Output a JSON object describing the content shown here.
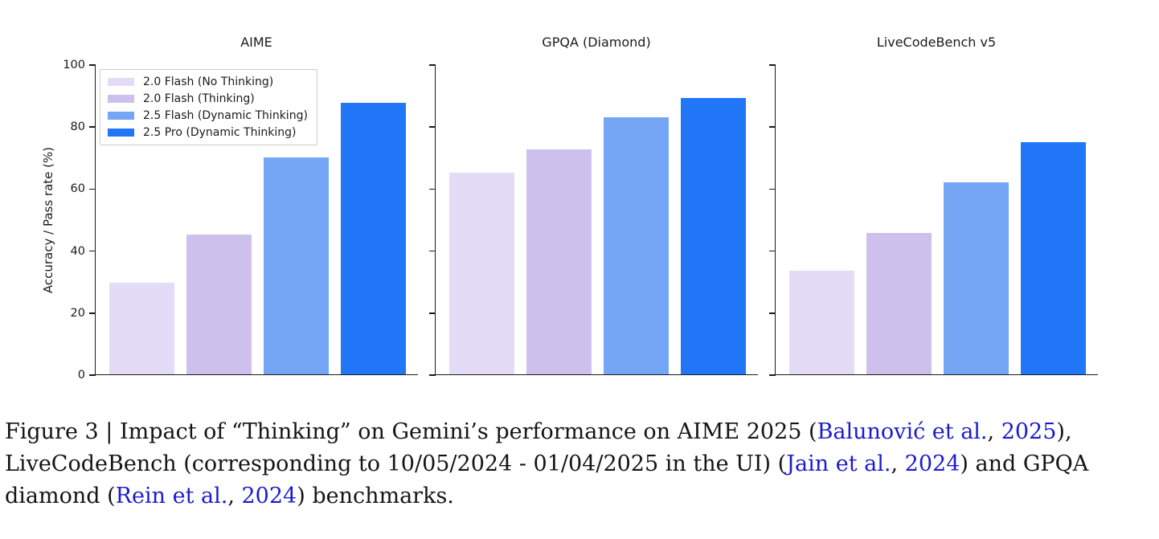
{
  "figure": {
    "ylabel": "Accuracy / Pass rate (%)",
    "legend": {
      "position": "upper-left-of-first-chart",
      "items": [
        {
          "label": "2.0 Flash (No Thinking)",
          "color": "#e4dcf6"
        },
        {
          "label": "2.0 Flash (Thinking)",
          "color": "#cec0ed"
        },
        {
          "label": "2.5 Flash (Dynamic Thinking)",
          "color": "#74a6f5"
        },
        {
          "label": "2.5 Pro (Dynamic Thinking)",
          "color": "#2277f8"
        }
      ]
    }
  },
  "chart_data": [
    {
      "type": "bar",
      "title": "AIME",
      "categories": [
        "2.0 Flash (No Thinking)",
        "2.0 Flash (Thinking)",
        "2.5 Flash (Dynamic Thinking)",
        "2.5 Pro (Dynamic Thinking)"
      ],
      "values": [
        29.5,
        45,
        70,
        87.5
      ],
      "colors": [
        "#e4dcf6",
        "#cec0ed",
        "#74a6f5",
        "#2277f8"
      ],
      "xlabel": "",
      "ylabel": "Accuracy / Pass rate (%)",
      "ylim": [
        0,
        100
      ],
      "yticks": [
        0,
        20,
        40,
        60,
        80,
        100
      ],
      "ytick_labels_visible": true,
      "grid": false,
      "legend_position": "upper left"
    },
    {
      "type": "bar",
      "title": "GPQA (Diamond)",
      "categories": [
        "2.0 Flash (No Thinking)",
        "2.0 Flash (Thinking)",
        "2.5 Flash (Dynamic Thinking)",
        "2.5 Pro (Dynamic Thinking)"
      ],
      "values": [
        65,
        72.5,
        83,
        89
      ],
      "colors": [
        "#e4dcf6",
        "#cec0ed",
        "#74a6f5",
        "#2277f8"
      ],
      "xlabel": "",
      "ylabel": "",
      "ylim": [
        0,
        100
      ],
      "yticks": [
        0,
        20,
        40,
        60,
        80,
        100
      ],
      "ytick_labels_visible": false,
      "grid": false,
      "legend_position": "none"
    },
    {
      "type": "bar",
      "title": "LiveCodeBench v5",
      "categories": [
        "2.0 Flash (No Thinking)",
        "2.0 Flash (Thinking)",
        "2.5 Flash (Dynamic Thinking)",
        "2.5 Pro (Dynamic Thinking)"
      ],
      "values": [
        33.5,
        45.5,
        62,
        75
      ],
      "colors": [
        "#e4dcf6",
        "#cec0ed",
        "#74a6f5",
        "#2277f8"
      ],
      "xlabel": "",
      "ylabel": "",
      "ylim": [
        0,
        100
      ],
      "yticks": [
        0,
        20,
        40,
        60,
        80,
        100
      ],
      "ytick_labels_visible": false,
      "grid": false,
      "legend_position": "none"
    }
  ],
  "caption": {
    "label": "Figure 3",
    "link_color": "#1b1bcd",
    "lines": [
      {
        "segments": [
          {
            "text": "Figure 3 | Impact of “Thinking” on Gemini’s performance on AIME 2025 (",
            "link": false
          },
          {
            "text": "Balunović et al.",
            "link": true
          },
          {
            "text": ", ",
            "link": false
          },
          {
            "text": "2025",
            "link": true
          },
          {
            "text": "),",
            "link": false
          }
        ]
      },
      {
        "segments": [
          {
            "text": "LiveCodeBench (corresponding to 10/05/2024 - 01/04/2025 in the UI) (",
            "link": false
          },
          {
            "text": "Jain et al.",
            "link": true
          },
          {
            "text": ", ",
            "link": false
          },
          {
            "text": "2024",
            "link": true
          },
          {
            "text": ") and GPQA",
            "link": false
          }
        ]
      },
      {
        "segments": [
          {
            "text": "diamond (",
            "link": false
          },
          {
            "text": "Rein et al.",
            "link": true
          },
          {
            "text": ", ",
            "link": false
          },
          {
            "text": "2024",
            "link": true
          },
          {
            "text": ") benchmarks.",
            "link": false
          }
        ]
      }
    ]
  }
}
